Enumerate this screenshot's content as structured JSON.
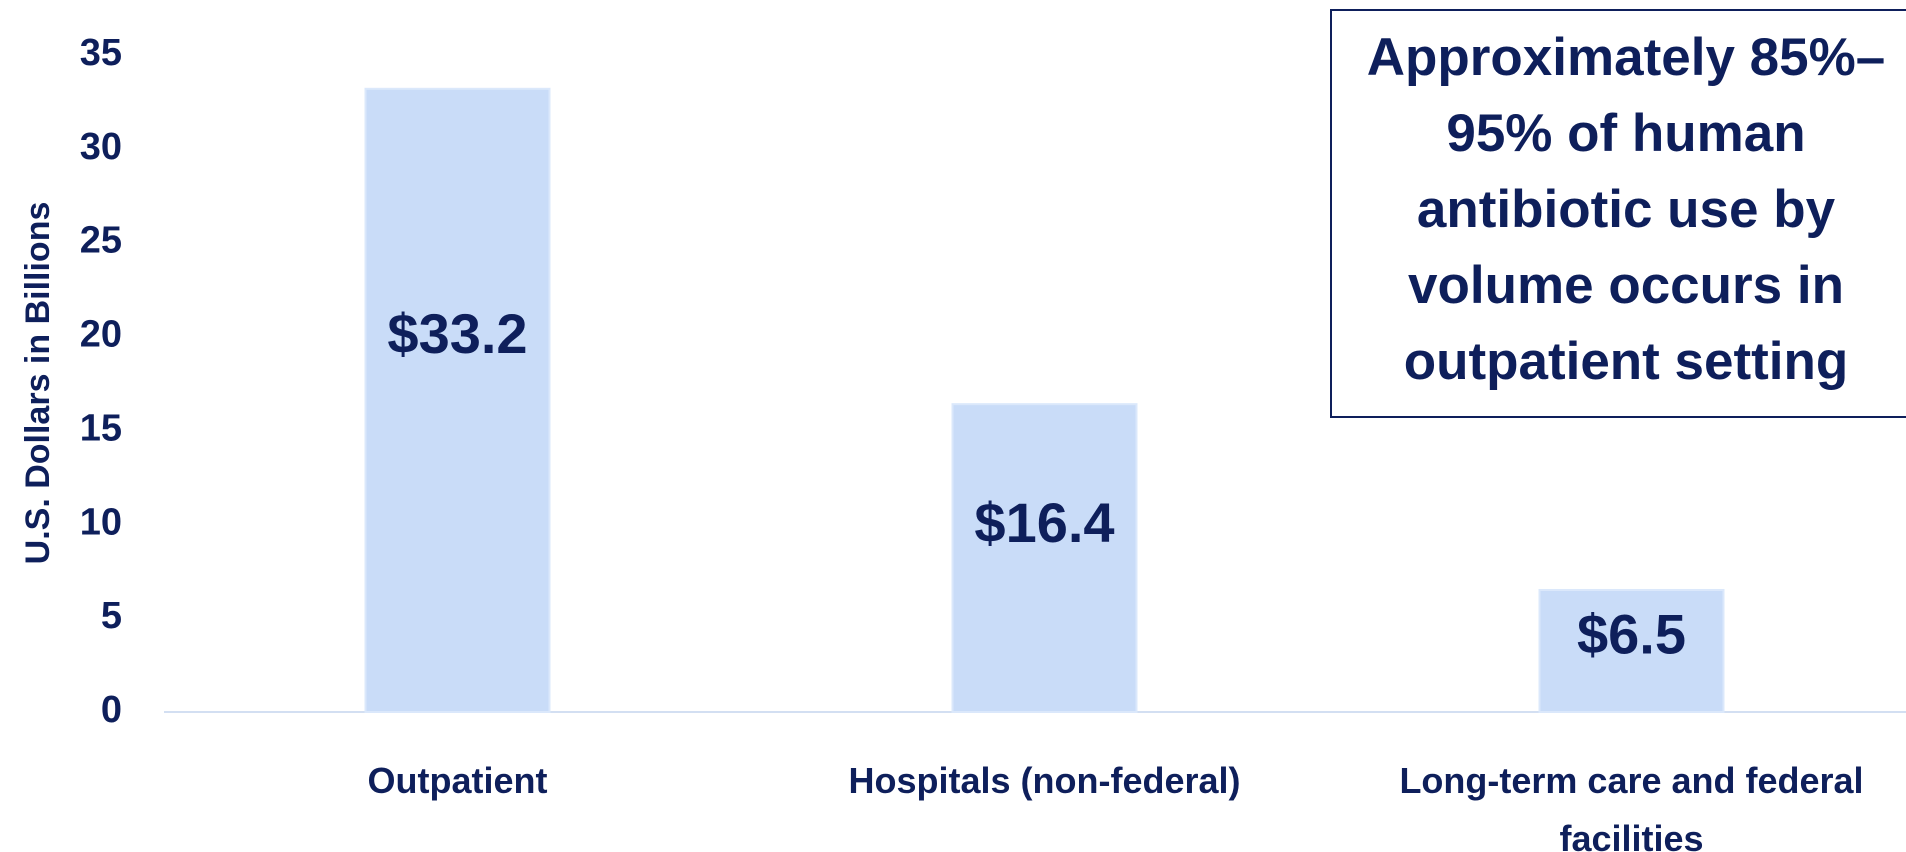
{
  "chart_data": {
    "type": "bar",
    "ylabel": "U.S. Dollars in Billions",
    "categories": [
      "Outpatient",
      "Hospitals (non-federal)",
      "Long-term care and federal facilities"
    ],
    "values": [
      33.2,
      16.4,
      6.5
    ],
    "value_labels": [
      "$33.2",
      "$16.4",
      "$6.5"
    ],
    "color": "#c9dcf8",
    "ylim": [
      0,
      35
    ],
    "yticks": [
      0,
      5,
      10,
      15,
      20,
      25,
      30,
      35
    ],
    "grid": false,
    "annotation": [
      "Approximately 85%–",
      "95% of human",
      "antibiotic use by",
      "volume occurs in",
      "outpatient setting"
    ]
  }
}
